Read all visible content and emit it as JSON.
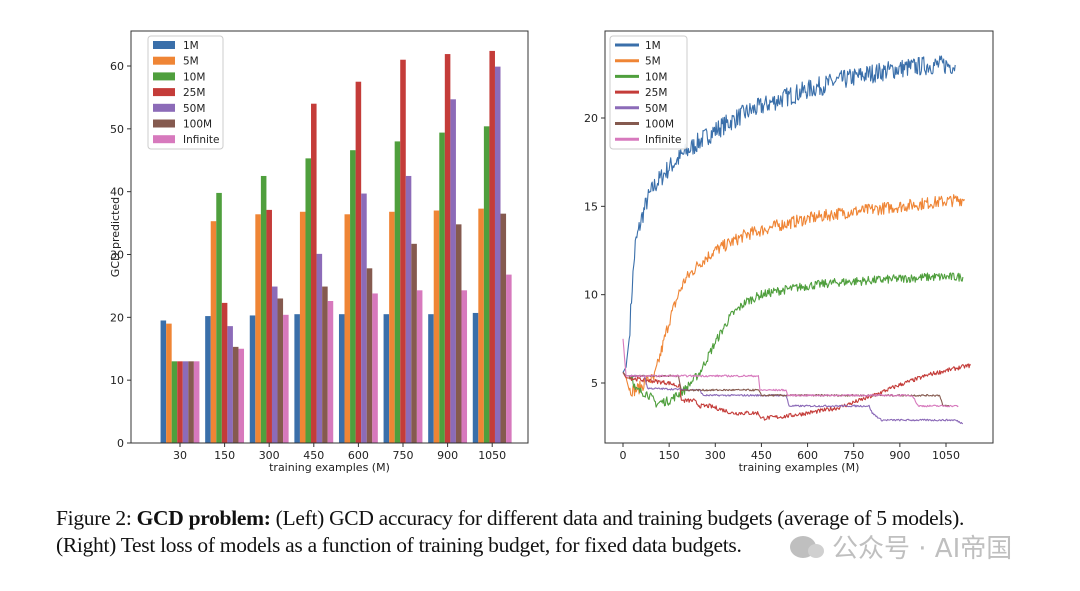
{
  "chart_data": [
    {
      "type": "bar",
      "title": "",
      "xlabel": "training examples (M)",
      "ylabel": "GCD predicted",
      "ylim": [
        0,
        65
      ],
      "yticks": [
        0,
        10,
        20,
        30,
        40,
        50,
        60
      ],
      "categories": [
        "30",
        "150",
        "300",
        "450",
        "600",
        "750",
        "900",
        "1050"
      ],
      "legend_position": "top-left",
      "series": [
        {
          "name": "1M",
          "color": "#3a6faa",
          "values": [
            19.5,
            20.2,
            20.3,
            20.5,
            20.5,
            20.5,
            20.5,
            20.7
          ]
        },
        {
          "name": "5M",
          "color": "#ef8535",
          "values": [
            19.0,
            35.3,
            36.4,
            36.8,
            36.4,
            36.8,
            37.0,
            37.3
          ]
        },
        {
          "name": "10M",
          "color": "#4f9f3d",
          "values": [
            13.0,
            39.8,
            42.5,
            45.3,
            46.6,
            48.0,
            49.4,
            50.4
          ]
        },
        {
          "name": "25M",
          "color": "#c43c39",
          "values": [
            13.0,
            22.3,
            37.1,
            54.0,
            57.5,
            61.0,
            61.9,
            62.4
          ]
        },
        {
          "name": "50M",
          "color": "#8c6bb8",
          "values": [
            13.0,
            18.6,
            24.9,
            30.1,
            39.7,
            42.5,
            54.7,
            59.9
          ]
        },
        {
          "name": "100M",
          "color": "#855a4f",
          "values": [
            13.0,
            15.3,
            23.0,
            24.9,
            27.8,
            31.7,
            34.8,
            36.5
          ]
        },
        {
          "name": "Infinite",
          "color": "#d779bd",
          "values": [
            13.0,
            15.0,
            20.4,
            22.6,
            23.8,
            24.3,
            24.3,
            26.8
          ]
        }
      ]
    },
    {
      "type": "line",
      "title": "",
      "xlabel": "training examples (M)",
      "ylabel": "",
      "xlim": [
        -40,
        1200
      ],
      "ylim": [
        1.6,
        25.3
      ],
      "xticks": [
        0,
        150,
        300,
        450,
        600,
        750,
        900,
        1050
      ],
      "yticks": [
        5,
        10,
        15,
        20
      ],
      "legend_position": "top-left",
      "series": [
        {
          "name": "1M",
          "color": "#3a6faa",
          "x": [
            0,
            10,
            20,
            30,
            40,
            60,
            80,
            100,
            150,
            200,
            250,
            300,
            400,
            500,
            600,
            700,
            800,
            900,
            1000,
            1080
          ],
          "y": [
            5.6,
            5.9,
            7.5,
            10.5,
            12.8,
            14.3,
            15.4,
            16.1,
            17.2,
            18.0,
            18.7,
            19.3,
            20.3,
            21.0,
            21.6,
            22.1,
            22.5,
            22.8,
            23.0,
            23.0
          ]
        },
        {
          "name": "5M",
          "color": "#ef8535",
          "x": [
            0,
            10,
            20,
            40,
            60,
            80,
            100,
            120,
            150,
            180,
            200,
            250,
            300,
            400,
            500,
            600,
            700,
            800,
            900,
            1000,
            1110
          ],
          "y": [
            5.6,
            5.3,
            4.6,
            4.6,
            4.8,
            5.2,
            5.2,
            6.5,
            8.5,
            10.0,
            10.8,
            11.8,
            12.5,
            13.4,
            13.9,
            14.3,
            14.6,
            14.8,
            15.0,
            15.2,
            15.4
          ]
        },
        {
          "name": "10M",
          "color": "#4f9f3d",
          "x": [
            0,
            10,
            30,
            40,
            80,
            110,
            120,
            150,
            200,
            250,
            300,
            350,
            400,
            450,
            500,
            600,
            700,
            800,
            900,
            1000,
            1105
          ],
          "y": [
            5.6,
            5.4,
            5.4,
            4.6,
            4.4,
            3.8,
            3.9,
            4.0,
            4.6,
            5.6,
            7.3,
            8.8,
            9.6,
            10.0,
            10.2,
            10.5,
            10.7,
            10.8,
            10.9,
            11.0,
            11.0
          ]
        },
        {
          "name": "25M",
          "color": "#c43c39",
          "x": [
            0,
            10,
            150,
            185,
            190,
            230,
            250,
            280,
            340,
            350,
            440,
            450,
            520,
            600,
            700,
            800,
            900,
            1000,
            1100,
            1130
          ],
          "y": [
            5.6,
            5.3,
            5.0,
            4.8,
            4.0,
            4.0,
            3.7,
            3.7,
            3.4,
            3.3,
            3.3,
            3.0,
            3.1,
            3.3,
            3.6,
            4.2,
            4.9,
            5.5,
            5.9,
            6.0
          ]
        },
        {
          "name": "50M",
          "color": "#8c6bb8",
          "x": [
            0,
            10,
            70,
            80,
            250,
            260,
            530,
            540,
            800,
            810,
            840,
            900,
            1000,
            1080,
            1105
          ],
          "y": [
            5.6,
            5.4,
            5.4,
            4.7,
            4.6,
            4.3,
            4.3,
            3.7,
            3.7,
            3.3,
            2.9,
            2.9,
            2.9,
            2.9,
            2.7
          ]
        },
        {
          "name": "100M",
          "color": "#855a4f",
          "x": [
            0,
            10,
            180,
            190,
            440,
            450,
            1030,
            1040,
            1060
          ],
          "y": [
            5.6,
            5.4,
            5.4,
            4.6,
            4.6,
            4.3,
            4.3,
            3.7,
            3.7
          ]
        },
        {
          "name": "Infinite",
          "color": "#d779bd",
          "x": [
            0,
            10,
            440,
            445,
            530,
            535,
            940,
            960,
            1090
          ],
          "y": [
            7.5,
            5.4,
            5.4,
            4.6,
            4.6,
            4.3,
            4.3,
            3.7,
            3.7
          ]
        }
      ]
    }
  ],
  "caption": {
    "label": "Figure 2:",
    "bold": "GCD problem:",
    "line1": "(Left) GCD accuracy for different data and training budgets (average of 5 models).",
    "line2": "(Right) Test loss of models as a function of training budget, for fixed data budgets."
  },
  "watermark": {
    "text": "公众号 · AI帝国",
    "icon": "wechat-icon"
  }
}
